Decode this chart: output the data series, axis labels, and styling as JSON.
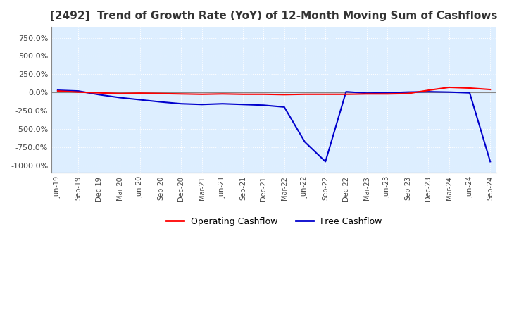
{
  "title": "[2492]  Trend of Growth Rate (YoY) of 12-Month Moving Sum of Cashflows",
  "title_fontsize": 11,
  "background_color": "#FFFFFF",
  "plot_background_color": "#DDEEFF",
  "grid_color": "#FFFFFF",
  "x_labels": [
    "Jun-19",
    "Sep-19",
    "Dec-19",
    "Mar-20",
    "Jun-20",
    "Sep-20",
    "Dec-20",
    "Mar-21",
    "Jun-21",
    "Sep-21",
    "Dec-21",
    "Mar-22",
    "Jun-22",
    "Sep-22",
    "Dec-22",
    "Mar-23",
    "Jun-23",
    "Sep-23",
    "Dec-23",
    "Mar-24",
    "Jun-24",
    "Sep-24"
  ],
  "operating_cashflow": [
    20.0,
    5.0,
    -5.0,
    -15.0,
    -10.0,
    -15.0,
    -20.0,
    -25.0,
    -20.0,
    -25.0,
    -25.0,
    -30.0,
    -25.0,
    -25.0,
    -25.0,
    -20.0,
    -20.0,
    -15.0,
    30.0,
    70.0,
    60.0,
    40.0
  ],
  "free_cashflow": [
    30.0,
    20.0,
    -30.0,
    -70.0,
    -100.0,
    -130.0,
    -155.0,
    -165.0,
    -155.0,
    -165.0,
    -175.0,
    -200.0,
    -680.0,
    -950.0,
    10.0,
    -10.0,
    -5.0,
    5.0,
    10.0,
    5.0,
    -5.0,
    -950.0
  ],
  "ylim": [
    -1100.0,
    900.0
  ],
  "yticks": [
    -1000.0,
    -750.0,
    -500.0,
    -250.0,
    0.0,
    250.0,
    500.0,
    750.0
  ],
  "operating_color": "#FF0000",
  "free_color": "#0000CC",
  "legend_labels": [
    "Operating Cashflow",
    "Free Cashflow"
  ],
  "line_width": 1.5
}
